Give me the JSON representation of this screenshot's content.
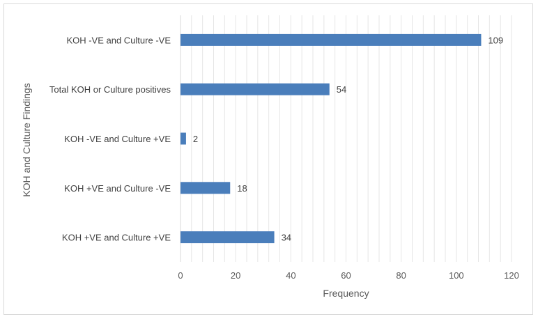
{
  "chart_data": {
    "type": "bar",
    "orientation": "horizontal",
    "categories": [
      "KOH -VE and Culture -VE",
      "Total KOH or Culture positives",
      "KOH -VE and Culture +VE",
      "KOH +VE and Culture -VE",
      "KOH +VE and Culture +VE"
    ],
    "values": [
      109,
      54,
      2,
      18,
      34
    ],
    "xlabel": "Frequency",
    "ylabel": "KOH and Culture Findings",
    "xlim": [
      0,
      120
    ],
    "xticks": [
      0,
      20,
      40,
      60,
      80,
      100,
      120
    ],
    "grid": "vertical-minor",
    "legend": "none",
    "bar_color": "#4a7ebb"
  }
}
